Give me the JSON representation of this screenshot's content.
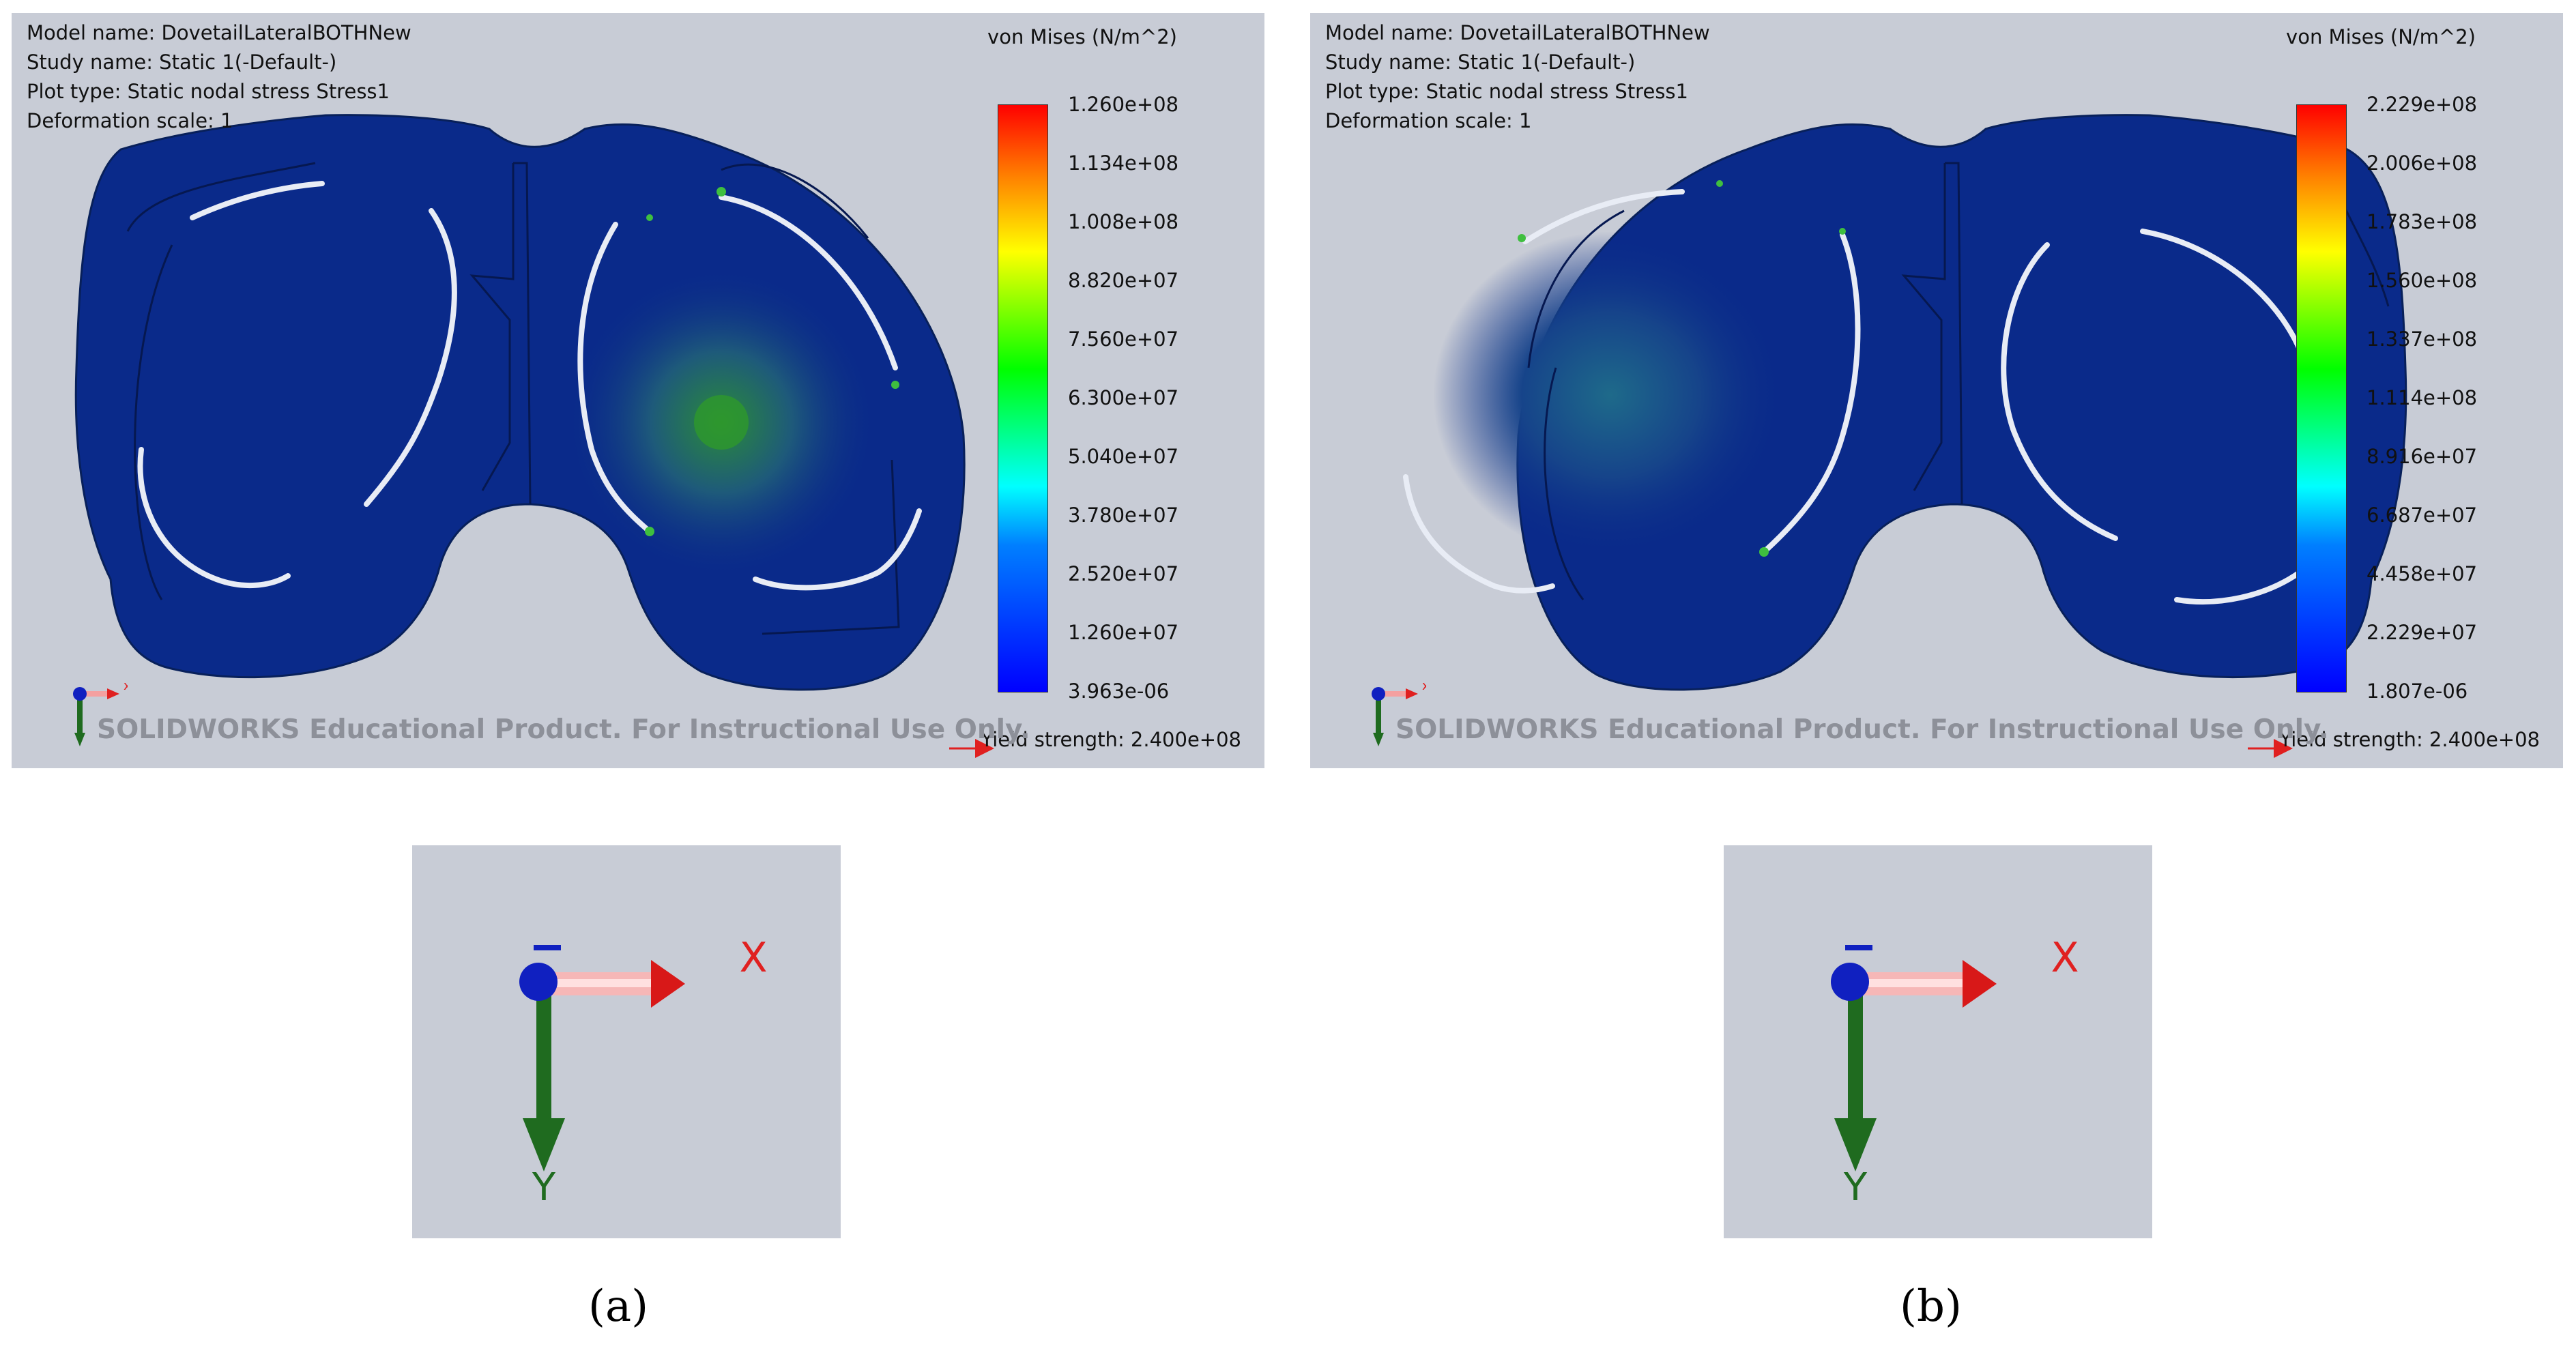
{
  "panels": [
    {
      "info": {
        "model_name": "Model name: DovetailLateralBOTHNew",
        "study_name": "Study name: Static 1(-Default-)",
        "plot_type": "Plot type: Static nodal stress Stress1",
        "deformation": "Deformation scale: 1"
      },
      "legend_title": "von Mises (N/m^2)",
      "ticks": [
        "1.260e+08",
        "1.134e+08",
        "1.008e+08",
        "8.820e+07",
        "7.560e+07",
        "6.300e+07",
        "5.040e+07",
        "3.780e+07",
        "2.520e+07",
        "1.260e+07",
        "3.963e-06"
      ],
      "yield": "Yield strength: 2.400e+08",
      "watermark": "SOLIDWORKS Educational Product. For Instructional Use Only.",
      "axis_x": "x",
      "caption": "(a)"
    },
    {
      "info": {
        "model_name": "Model name: DovetailLateralBOTHNew",
        "study_name": "Study name: Static 1(-Default-)",
        "plot_type": "Plot type: Static nodal stress Stress1",
        "deformation": "Deformation scale: 1"
      },
      "legend_title": "von Mises (N/m^2)",
      "ticks": [
        "2.229e+08",
        "2.006e+08",
        "1.783e+08",
        "1.560e+08",
        "1.337e+08",
        "1.114e+08",
        "8.916e+07",
        "6.687e+07",
        "4.458e+07",
        "2.229e+07",
        "1.807e-06"
      ],
      "yield": "Yield strength: 2.400e+08",
      "watermark": "SOLIDWORKS Educational Product. For Instructional Use Only.",
      "axis_x": "x",
      "caption": "(b)"
    }
  ],
  "triad": {
    "x_label": "X",
    "y_label": "Y"
  },
  "colors": {
    "background": "#c8ccd6",
    "model_blue": "#0a2a8a",
    "axis_x": "#e02020",
    "axis_y": "#1f6b1f",
    "axis_z": "#1020c0"
  }
}
